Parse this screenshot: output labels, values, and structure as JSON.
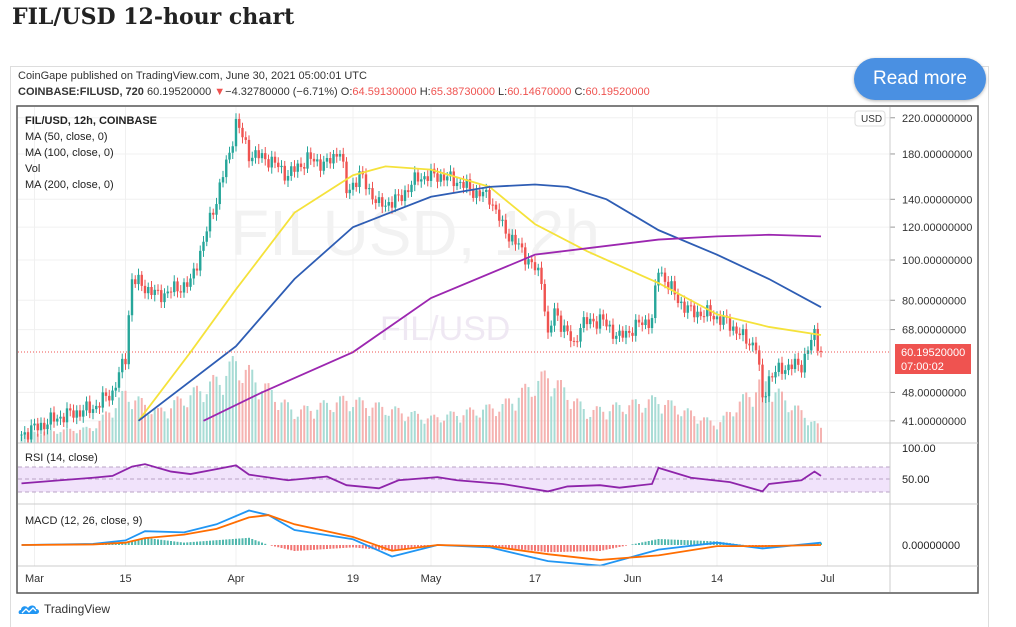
{
  "heading": "FIL/USD 12-hour chart",
  "published": "CoinGape published on TradingView.com, June 30, 2021 05:00:01 UTC",
  "symbol_line": {
    "symbol": "COINBASE:FILUSD, 720",
    "last": "60.19520000",
    "arrow": "▼",
    "change": "−4.32780000 (−6.71%)",
    "o_label": "O:",
    "o": "64.59130000",
    "h_label": "H:",
    "h": "65.38730000",
    "l_label": "L:",
    "l": "60.14670000",
    "c_label": "C:",
    "c": "60.19520000"
  },
  "read_more": "Read more",
  "footer": "TradingView",
  "colors": {
    "up": "#26a69a",
    "down": "#ef5350",
    "ma50": "#f5e23b",
    "ma100": "#2e5db4",
    "ma200": "#9c27b0",
    "rsi": "#8e24aa",
    "macd": "#2196f3",
    "signal": "#ff6d00"
  },
  "chart_data": {
    "type": "candlestick",
    "title": "FIL/USD, 12h, COINBASE",
    "watermark": "FILUSD, 12h",
    "watermark2": "FIL/USD",
    "legend": [
      "MA (50, close, 0)",
      "MA (100, close, 0)",
      "Vol",
      "MA (200, close, 0)"
    ],
    "y_scale": "log",
    "y_ticks": [
      "220.00000000",
      "180.00000000",
      "140.00000000",
      "120.00000000",
      "100.00000000",
      "80.00000000",
      "68.00000000",
      "48.00000000",
      "41.00000000"
    ],
    "y_tick_values": [
      220,
      180,
      140,
      120,
      100,
      80,
      68,
      48,
      41
    ],
    "currency_badge": "USD",
    "last_price_label": "60.19520000",
    "last_price_timer": "07:00:02",
    "last_price": 60.1952,
    "x_ticks": [
      [
        "03-01",
        "Mar"
      ],
      [
        "03-15",
        "15"
      ],
      [
        "04-01",
        "Apr"
      ],
      [
        "04-19",
        "19"
      ],
      [
        "05-01",
        "May"
      ],
      [
        "05-17",
        "17"
      ],
      [
        "06-01",
        "Jun"
      ],
      [
        "06-14",
        "14"
      ],
      [
        "07-01",
        "Jul"
      ]
    ],
    "close_keypoints": [
      [
        "02-27",
        38
      ],
      [
        "03-05",
        42
      ],
      [
        "03-10",
        44
      ],
      [
        "03-13",
        48
      ],
      [
        "03-15",
        58
      ],
      [
        "03-16",
        90
      ],
      [
        "03-20",
        82
      ],
      [
        "03-25",
        88
      ],
      [
        "03-27",
        110
      ],
      [
        "03-29",
        140
      ],
      [
        "03-31",
        180
      ],
      [
        "04-01",
        215
      ],
      [
        "04-03",
        180
      ],
      [
        "04-06",
        175
      ],
      [
        "04-09",
        160
      ],
      [
        "04-12",
        175
      ],
      [
        "04-15",
        170
      ],
      [
        "04-17",
        185
      ],
      [
        "04-18",
        145
      ],
      [
        "04-20",
        160
      ],
      [
        "04-23",
        135
      ],
      [
        "04-26",
        140
      ],
      [
        "04-29",
        158
      ],
      [
        "05-02",
        160
      ],
      [
        "05-05",
        155
      ],
      [
        "05-08",
        145
      ],
      [
        "05-10",
        142
      ],
      [
        "05-12",
        120
      ],
      [
        "05-14",
        110
      ],
      [
        "05-16",
        100
      ],
      [
        "05-18",
        90
      ],
      [
        "05-19",
        65
      ],
      [
        "05-20",
        75
      ],
      [
        "05-23",
        62
      ],
      [
        "05-24",
        70
      ],
      [
        "05-27",
        72
      ],
      [
        "05-30",
        65
      ],
      [
        "06-02",
        70
      ],
      [
        "06-04",
        72
      ],
      [
        "06-05",
        95
      ],
      [
        "06-07",
        85
      ],
      [
        "06-08",
        80
      ],
      [
        "06-10",
        75
      ],
      [
        "06-13",
        74
      ],
      [
        "06-16",
        70
      ],
      [
        "06-18",
        65
      ],
      [
        "06-20",
        62
      ],
      [
        "06-21",
        46
      ],
      [
        "06-22",
        52
      ],
      [
        "06-24",
        55
      ],
      [
        "06-27",
        56
      ],
      [
        "06-29",
        66
      ],
      [
        "06-30",
        60.2
      ]
    ],
    "ma50": [
      [
        "03-17",
        41
      ],
      [
        "03-25",
        60
      ],
      [
        "04-01",
        85
      ],
      [
        "04-10",
        130
      ],
      [
        "04-19",
        160
      ],
      [
        "04-24",
        168
      ],
      [
        "05-01",
        165
      ],
      [
        "05-10",
        150
      ],
      [
        "05-17",
        122
      ],
      [
        "05-25",
        105
      ],
      [
        "06-05",
        88
      ],
      [
        "06-14",
        74
      ],
      [
        "06-22",
        69
      ],
      [
        "06-30",
        66
      ]
    ],
    "ma100": [
      [
        "03-17",
        41
      ],
      [
        "04-01",
        62
      ],
      [
        "04-10",
        90
      ],
      [
        "04-19",
        120
      ],
      [
        "05-01",
        142
      ],
      [
        "05-10",
        150
      ],
      [
        "05-17",
        152
      ],
      [
        "05-22",
        150
      ],
      [
        "05-28",
        140
      ],
      [
        "06-05",
        118
      ],
      [
        "06-14",
        103
      ],
      [
        "06-22",
        90
      ],
      [
        "06-30",
        77
      ]
    ],
    "ma200": [
      [
        "03-27",
        41
      ],
      [
        "04-05",
        48
      ],
      [
        "04-19",
        60
      ],
      [
        "05-01",
        81
      ],
      [
        "05-17",
        103
      ],
      [
        "06-05",
        112
      ],
      [
        "06-14",
        114
      ],
      [
        "06-22",
        115
      ],
      [
        "06-30",
        114
      ]
    ],
    "volume_relative": [
      [
        "02-27",
        0.08
      ],
      [
        "03-10",
        0.12
      ],
      [
        "03-15",
        0.4
      ],
      [
        "03-20",
        0.25
      ],
      [
        "03-29",
        0.5
      ],
      [
        "04-01",
        0.65
      ],
      [
        "04-10",
        0.25
      ],
      [
        "04-18",
        0.35
      ],
      [
        "05-01",
        0.2
      ],
      [
        "05-12",
        0.3
      ],
      [
        "05-19",
        0.55
      ],
      [
        "05-25",
        0.25
      ],
      [
        "06-05",
        0.35
      ],
      [
        "06-14",
        0.15
      ],
      [
        "06-21",
        0.5
      ],
      [
        "06-30",
        0.12
      ]
    ],
    "rsi": {
      "label": "RSI (14, close)",
      "ticks": [
        "100.00",
        "50.00"
      ],
      "band": [
        30,
        70
      ],
      "points": [
        [
          "02-27",
          43
        ],
        [
          "03-05",
          48
        ],
        [
          "03-10",
          52
        ],
        [
          "03-13",
          55
        ],
        [
          "03-16",
          70
        ],
        [
          "03-18",
          74
        ],
        [
          "03-22",
          62
        ],
        [
          "03-25",
          58
        ],
        [
          "03-29",
          66
        ],
        [
          "04-01",
          72
        ],
        [
          "04-03",
          57
        ],
        [
          "04-09",
          48
        ],
        [
          "04-15",
          54
        ],
        [
          "04-18",
          40
        ],
        [
          "04-23",
          35
        ],
        [
          "04-26",
          48
        ],
        [
          "05-02",
          53
        ],
        [
          "05-05",
          48
        ],
        [
          "05-12",
          42
        ],
        [
          "05-19",
          30
        ],
        [
          "05-22",
          38
        ],
        [
          "05-27",
          40
        ],
        [
          "05-30",
          36
        ],
        [
          "06-04",
          42
        ],
        [
          "06-05",
          68
        ],
        [
          "06-10",
          52
        ],
        [
          "06-16",
          45
        ],
        [
          "06-21",
          30
        ],
        [
          "06-22",
          42
        ],
        [
          "06-27",
          48
        ],
        [
          "06-29",
          62
        ],
        [
          "06-30",
          55
        ]
      ]
    },
    "macd": {
      "label": "MACD (12, 26, close, 9)",
      "ticks": [
        "0.00000000"
      ],
      "points": [
        [
          "02-27",
          0,
          0
        ],
        [
          "03-10",
          1,
          0.5
        ],
        [
          "03-15",
          4,
          2
        ],
        [
          "03-18",
          12,
          6
        ],
        [
          "03-24",
          11,
          9
        ],
        [
          "03-29",
          18,
          14
        ],
        [
          "04-03",
          30,
          24
        ],
        [
          "04-06",
          26,
          26
        ],
        [
          "04-10",
          13,
          18
        ],
        [
          "04-19",
          5,
          7
        ],
        [
          "04-25",
          -10,
          -5
        ],
        [
          "05-02",
          0,
          0
        ],
        [
          "05-10",
          -2,
          -1
        ],
        [
          "05-19",
          -14,
          -8
        ],
        [
          "05-27",
          -18,
          -13
        ],
        [
          "06-05",
          -4,
          -9
        ],
        [
          "06-14",
          2,
          -1
        ],
        [
          "06-21",
          -3,
          -1
        ],
        [
          "06-30",
          2,
          0
        ]
      ]
    }
  }
}
